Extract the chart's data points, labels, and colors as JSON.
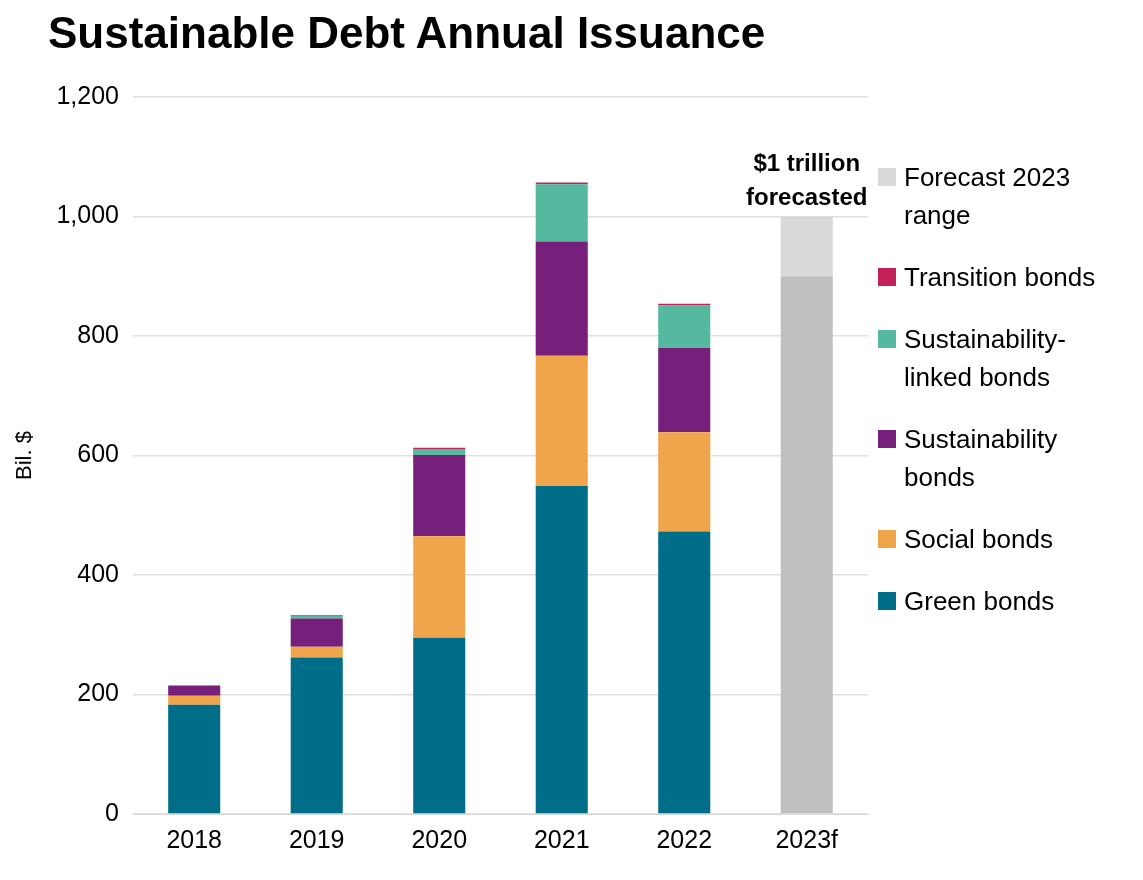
{
  "chart_data": {
    "type": "bar",
    "title": "Sustainable Debt Annual Issuance",
    "ylabel": "Bil. $",
    "categories": [
      "2018",
      "2019",
      "2020",
      "2021",
      "2022",
      "2023f"
    ],
    "stacked": true,
    "series": [
      {
        "name": "Green bonds",
        "color": "#006d89",
        "values": [
          183,
          262,
          295,
          549,
          473,
          null
        ]
      },
      {
        "name": "Social bonds",
        "color": "#f0a54a",
        "values": [
          15,
          18,
          170,
          218,
          166,
          null
        ]
      },
      {
        "name": "Sustainability bonds",
        "color": "#77207b",
        "values": [
          17,
          47,
          136,
          191,
          141,
          null
        ]
      },
      {
        "name": "Sustainability-linked bonds",
        "color": "#55b99f",
        "values": [
          0,
          5,
          10,
          96,
          71,
          null
        ]
      },
      {
        "name": "Transition bonds",
        "color": "#c4205a",
        "values": [
          0,
          1,
          2,
          3,
          3,
          null
        ]
      },
      {
        "color": "#bfbfbf",
        "values": [
          null,
          null,
          null,
          null,
          null,
          900
        ]
      },
      {
        "name": "Forecast 2023 range",
        "color": "#d9d9d9",
        "values": [
          null,
          null,
          null,
          null,
          null,
          100
        ]
      }
    ],
    "ylim": [
      0,
      1200
    ],
    "yticks": [
      0,
      {
        "value": 200,
        "label": "200"
      },
      {
        "value": 400,
        "label": "400"
      },
      {
        "value": 600,
        "label": "600"
      },
      {
        "value": 800,
        "label": "800"
      },
      {
        "value": 1000,
        "label": "1,000"
      },
      {
        "value": 1200,
        "label": "1,200"
      }
    ],
    "grid": "y",
    "legend": "right",
    "annotations": [
      {
        "text": "$1 trillion forecasted",
        "x": "2023f",
        "y": 1000
      }
    ]
  }
}
